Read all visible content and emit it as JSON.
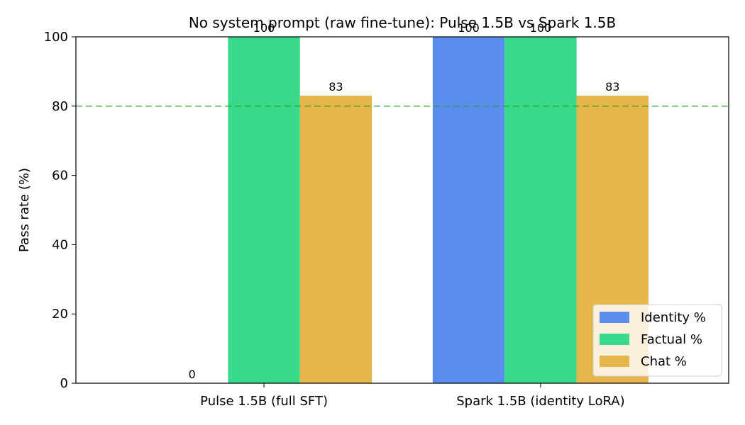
{
  "chart_data": {
    "type": "bar",
    "title": "No system prompt (raw fine-tune): Pulse 1.5B vs Spark 1.5B",
    "xlabel": "",
    "ylabel": "Pass rate (%)",
    "categories": [
      "Pulse 1.5B (full SFT)",
      "Spark 1.5B (identity LoRA)"
    ],
    "series": [
      {
        "name": "Identity %",
        "values": [
          0,
          100
        ],
        "color": "#5b8def"
      },
      {
        "name": "Factual %",
        "values": [
          100,
          100
        ],
        "color": "#39d98a"
      },
      {
        "name": "Chat %",
        "values": [
          83,
          83
        ],
        "color": "#e6b64a"
      }
    ],
    "data_labels": [
      [
        "0",
        "100"
      ],
      [
        "100",
        "100"
      ],
      [
        "83",
        "83"
      ]
    ],
    "ylim": [
      0,
      100
    ],
    "yticks": [
      0,
      20,
      40,
      60,
      80,
      100
    ],
    "reference_line": {
      "value": 80,
      "color": "#2ca02c",
      "style": "dashed"
    },
    "grid": false,
    "legend_position": "lower-right"
  }
}
